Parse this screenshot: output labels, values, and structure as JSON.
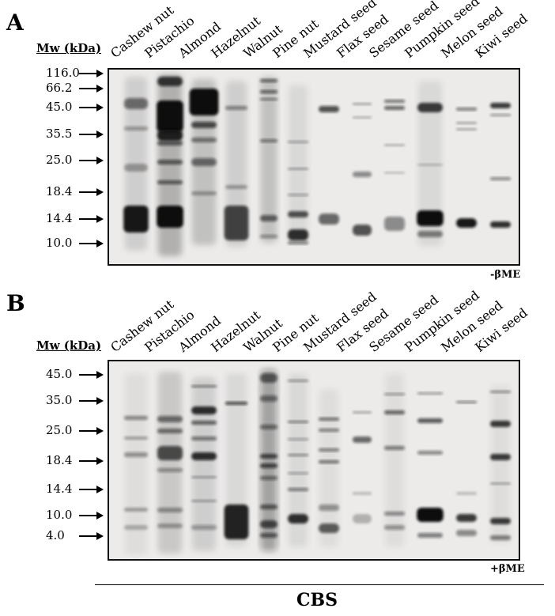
{
  "panel_a": {
    "letter": "A",
    "mw_header": "Mw (kDa)",
    "lanes": [
      "Cashew nut",
      "Pistachio",
      "Almond",
      "Hazelnut",
      "Walnut",
      "Pine nut",
      "Mustard seed",
      "Flax seed",
      "Sesame seed",
      "Pumpkin seed",
      "Melon seed",
      "Kiwi seed"
    ],
    "markers": [
      "116.0",
      "66.2",
      "45.0",
      "35.5",
      "25.0",
      "18.4",
      "14.4",
      "10.0"
    ],
    "condition": "-βME"
  },
  "panel_b": {
    "letter": "B",
    "mw_header": "Mw (kDa)",
    "lanes": [
      "Cashew nut",
      "Pistachio",
      "Almond",
      "Hazelnut",
      "Walnut",
      "Pine nut",
      "Mustard seed",
      "Flax seed",
      "Sesame seed",
      "Pumpkin seed",
      "Melon seed",
      "Kiwi seed"
    ],
    "markers": [
      "45.0",
      "35.0",
      "25.0",
      "18.4",
      "14.4",
      "10.0",
      "4.0"
    ],
    "condition": "+βME"
  },
  "group_label": "CBS",
  "colors": {
    "gel_background": "#ecebea",
    "band": "#111111",
    "frame": "#111111"
  }
}
